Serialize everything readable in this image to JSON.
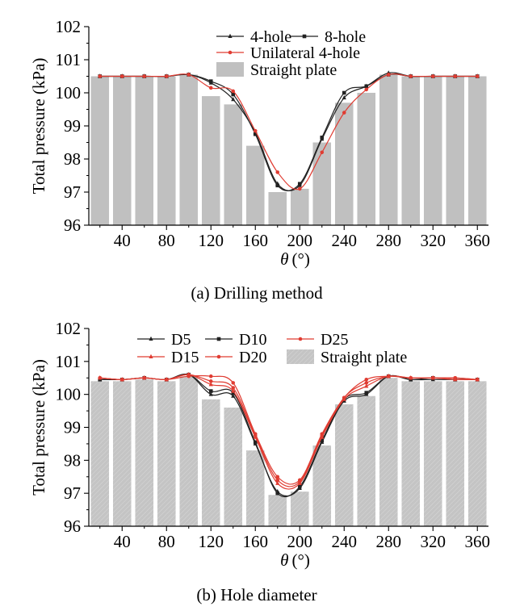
{
  "chart_data": [
    {
      "type": "bar+line",
      "caption": "(a) Drilling method",
      "xlabel_symbol": "θ",
      "xlabel_unit": "(°)",
      "ylabel": "Total pressure (kPa)",
      "ylim": [
        96,
        102
      ],
      "yticks": [
        "96",
        "97",
        "98",
        "99",
        "100",
        "101",
        "102"
      ],
      "xlim": [
        10,
        370
      ],
      "xticks": [
        "40",
        "80",
        "120",
        "160",
        "200",
        "240",
        "280",
        "320",
        "360"
      ],
      "x": [
        20,
        40,
        60,
        80,
        100,
        120,
        140,
        160,
        180,
        200,
        220,
        240,
        260,
        280,
        300,
        320,
        340,
        360
      ],
      "bars": {
        "name": "Straight plate",
        "color": "#c0c0c0",
        "values": [
          100.5,
          100.5,
          100.5,
          100.5,
          100.55,
          99.9,
          99.65,
          98.4,
          97.0,
          97.1,
          98.5,
          99.7,
          100.0,
          100.55,
          100.5,
          100.5,
          100.5,
          100.5
        ]
      },
      "series": [
        {
          "name": "4-hole",
          "marker": "triangle",
          "color": "#222222",
          "values": [
            100.5,
            100.5,
            100.5,
            100.5,
            100.55,
            100.3,
            99.8,
            98.8,
            97.25,
            97.2,
            98.6,
            99.85,
            100.2,
            100.6,
            100.5,
            100.5,
            100.5,
            100.5
          ]
        },
        {
          "name": "8-hole",
          "marker": "square",
          "color": "#222222",
          "values": [
            100.5,
            100.5,
            100.5,
            100.5,
            100.55,
            100.35,
            99.95,
            98.75,
            97.2,
            97.25,
            98.65,
            100.0,
            100.2,
            100.55,
            100.5,
            100.5,
            100.5,
            100.5
          ]
        },
        {
          "name": "Unilateral 4-hole",
          "marker": "circle",
          "color": "#e03c32",
          "values": [
            100.5,
            100.5,
            100.5,
            100.5,
            100.55,
            100.15,
            100.05,
            98.85,
            97.6,
            97.1,
            98.2,
            99.4,
            100.1,
            100.55,
            100.5,
            100.5,
            100.5,
            100.5
          ]
        }
      ]
    },
    {
      "type": "bar+line",
      "caption": "(b) Hole diameter",
      "xlabel_symbol": "θ",
      "xlabel_unit": "(°)",
      "ylabel": "Total pressure (kPa)",
      "ylim": [
        96,
        102
      ],
      "yticks": [
        "96",
        "97",
        "98",
        "99",
        "100",
        "101",
        "102"
      ],
      "xlim": [
        10,
        370
      ],
      "xticks": [
        "40",
        "80",
        "120",
        "160",
        "200",
        "240",
        "280",
        "320",
        "360"
      ],
      "x": [
        20,
        40,
        60,
        80,
        100,
        120,
        140,
        160,
        180,
        200,
        220,
        240,
        260,
        280,
        300,
        320,
        340,
        360
      ],
      "bars": {
        "name": "Straight plate",
        "color": "#c0c0c0",
        "values": [
          100.4,
          100.4,
          100.45,
          100.4,
          100.55,
          99.85,
          99.6,
          98.3,
          96.95,
          97.05,
          98.45,
          99.7,
          99.95,
          100.5,
          100.4,
          100.4,
          100.4,
          100.4
        ]
      },
      "series": [
        {
          "name": "D5",
          "marker": "triangle",
          "color": "#222222",
          "values": [
            100.45,
            100.45,
            100.5,
            100.45,
            100.6,
            100.0,
            99.95,
            98.5,
            97.05,
            97.15,
            98.55,
            99.8,
            100.0,
            100.55,
            100.45,
            100.45,
            100.45,
            100.45
          ]
        },
        {
          "name": "D10",
          "marker": "square",
          "color": "#222222",
          "values": [
            100.45,
            100.45,
            100.5,
            100.45,
            100.6,
            100.1,
            100.05,
            98.55,
            97.0,
            97.2,
            98.6,
            99.85,
            100.05,
            100.55,
            100.45,
            100.5,
            100.45,
            100.45
          ]
        },
        {
          "name": "D25",
          "marker": "circle",
          "color": "#e03c32",
          "values": [
            100.5,
            100.45,
            100.5,
            100.45,
            100.55,
            100.55,
            100.35,
            98.8,
            97.5,
            97.4,
            98.8,
            99.9,
            100.45,
            100.55,
            100.5,
            100.5,
            100.5,
            100.45
          ]
        },
        {
          "name": "D15",
          "marker": "triangle",
          "color": "#e03c32",
          "values": [
            100.5,
            100.45,
            100.5,
            100.45,
            100.6,
            100.3,
            100.1,
            98.7,
            97.3,
            97.3,
            98.7,
            99.85,
            100.25,
            100.55,
            100.5,
            100.5,
            100.45,
            100.45
          ]
        },
        {
          "name": "D20",
          "marker": "circle",
          "color": "#e03c32",
          "values": [
            100.5,
            100.45,
            100.5,
            100.45,
            100.6,
            100.4,
            100.2,
            98.75,
            97.4,
            97.35,
            98.75,
            99.9,
            100.35,
            100.55,
            100.5,
            100.5,
            100.5,
            100.45
          ]
        }
      ]
    }
  ]
}
